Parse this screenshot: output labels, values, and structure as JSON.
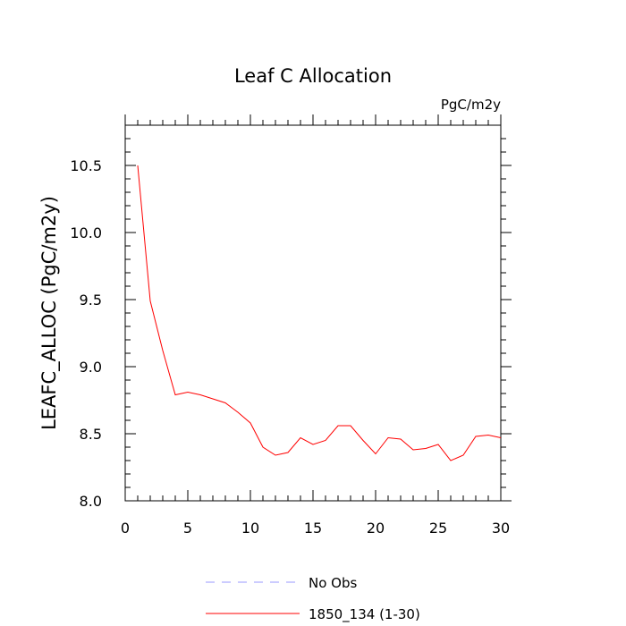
{
  "chart_data": {
    "type": "line",
    "title": "Leaf C Allocation",
    "units": "PgC/m2y",
    "xlabel": "",
    "ylabel": "LEAFC_ALLOC  (PgC/m2y)",
    "xlim": [
      0,
      30
    ],
    "ylim": [
      8.0,
      10.8
    ],
    "x_ticks": [
      0,
      5,
      10,
      15,
      20,
      25,
      30
    ],
    "x_tick_labels": [
      "0",
      "5",
      "10",
      "15",
      "20",
      "25",
      "30"
    ],
    "y_ticks": [
      8.0,
      8.5,
      9.0,
      9.5,
      10.0,
      10.5
    ],
    "y_tick_labels": [
      "8.0",
      "8.5",
      "9.0",
      "9.5",
      "10.0",
      "10.5"
    ],
    "grid": false,
    "legend_position": "bottom",
    "series": [
      {
        "name": "No Obs",
        "color": "#9999ff",
        "style": "dashed",
        "x": [],
        "y": []
      },
      {
        "name": "1850_134 (1-30)",
        "color": "#ff0000",
        "style": "solid",
        "x": [
          1,
          2,
          3,
          4,
          5,
          6,
          7,
          8,
          9,
          10,
          11,
          12,
          13,
          14,
          15,
          16,
          17,
          18,
          19,
          20,
          21,
          22,
          23,
          24,
          25,
          26,
          27,
          28,
          29,
          30
        ],
        "y": [
          10.5,
          9.49,
          9.12,
          8.79,
          8.81,
          8.79,
          8.76,
          8.73,
          8.66,
          8.58,
          8.4,
          8.34,
          8.36,
          8.47,
          8.42,
          8.45,
          8.56,
          8.56,
          8.45,
          8.35,
          8.47,
          8.46,
          8.38,
          8.39,
          8.42,
          8.3,
          8.34,
          8.48,
          8.49,
          8.47
        ]
      }
    ]
  }
}
